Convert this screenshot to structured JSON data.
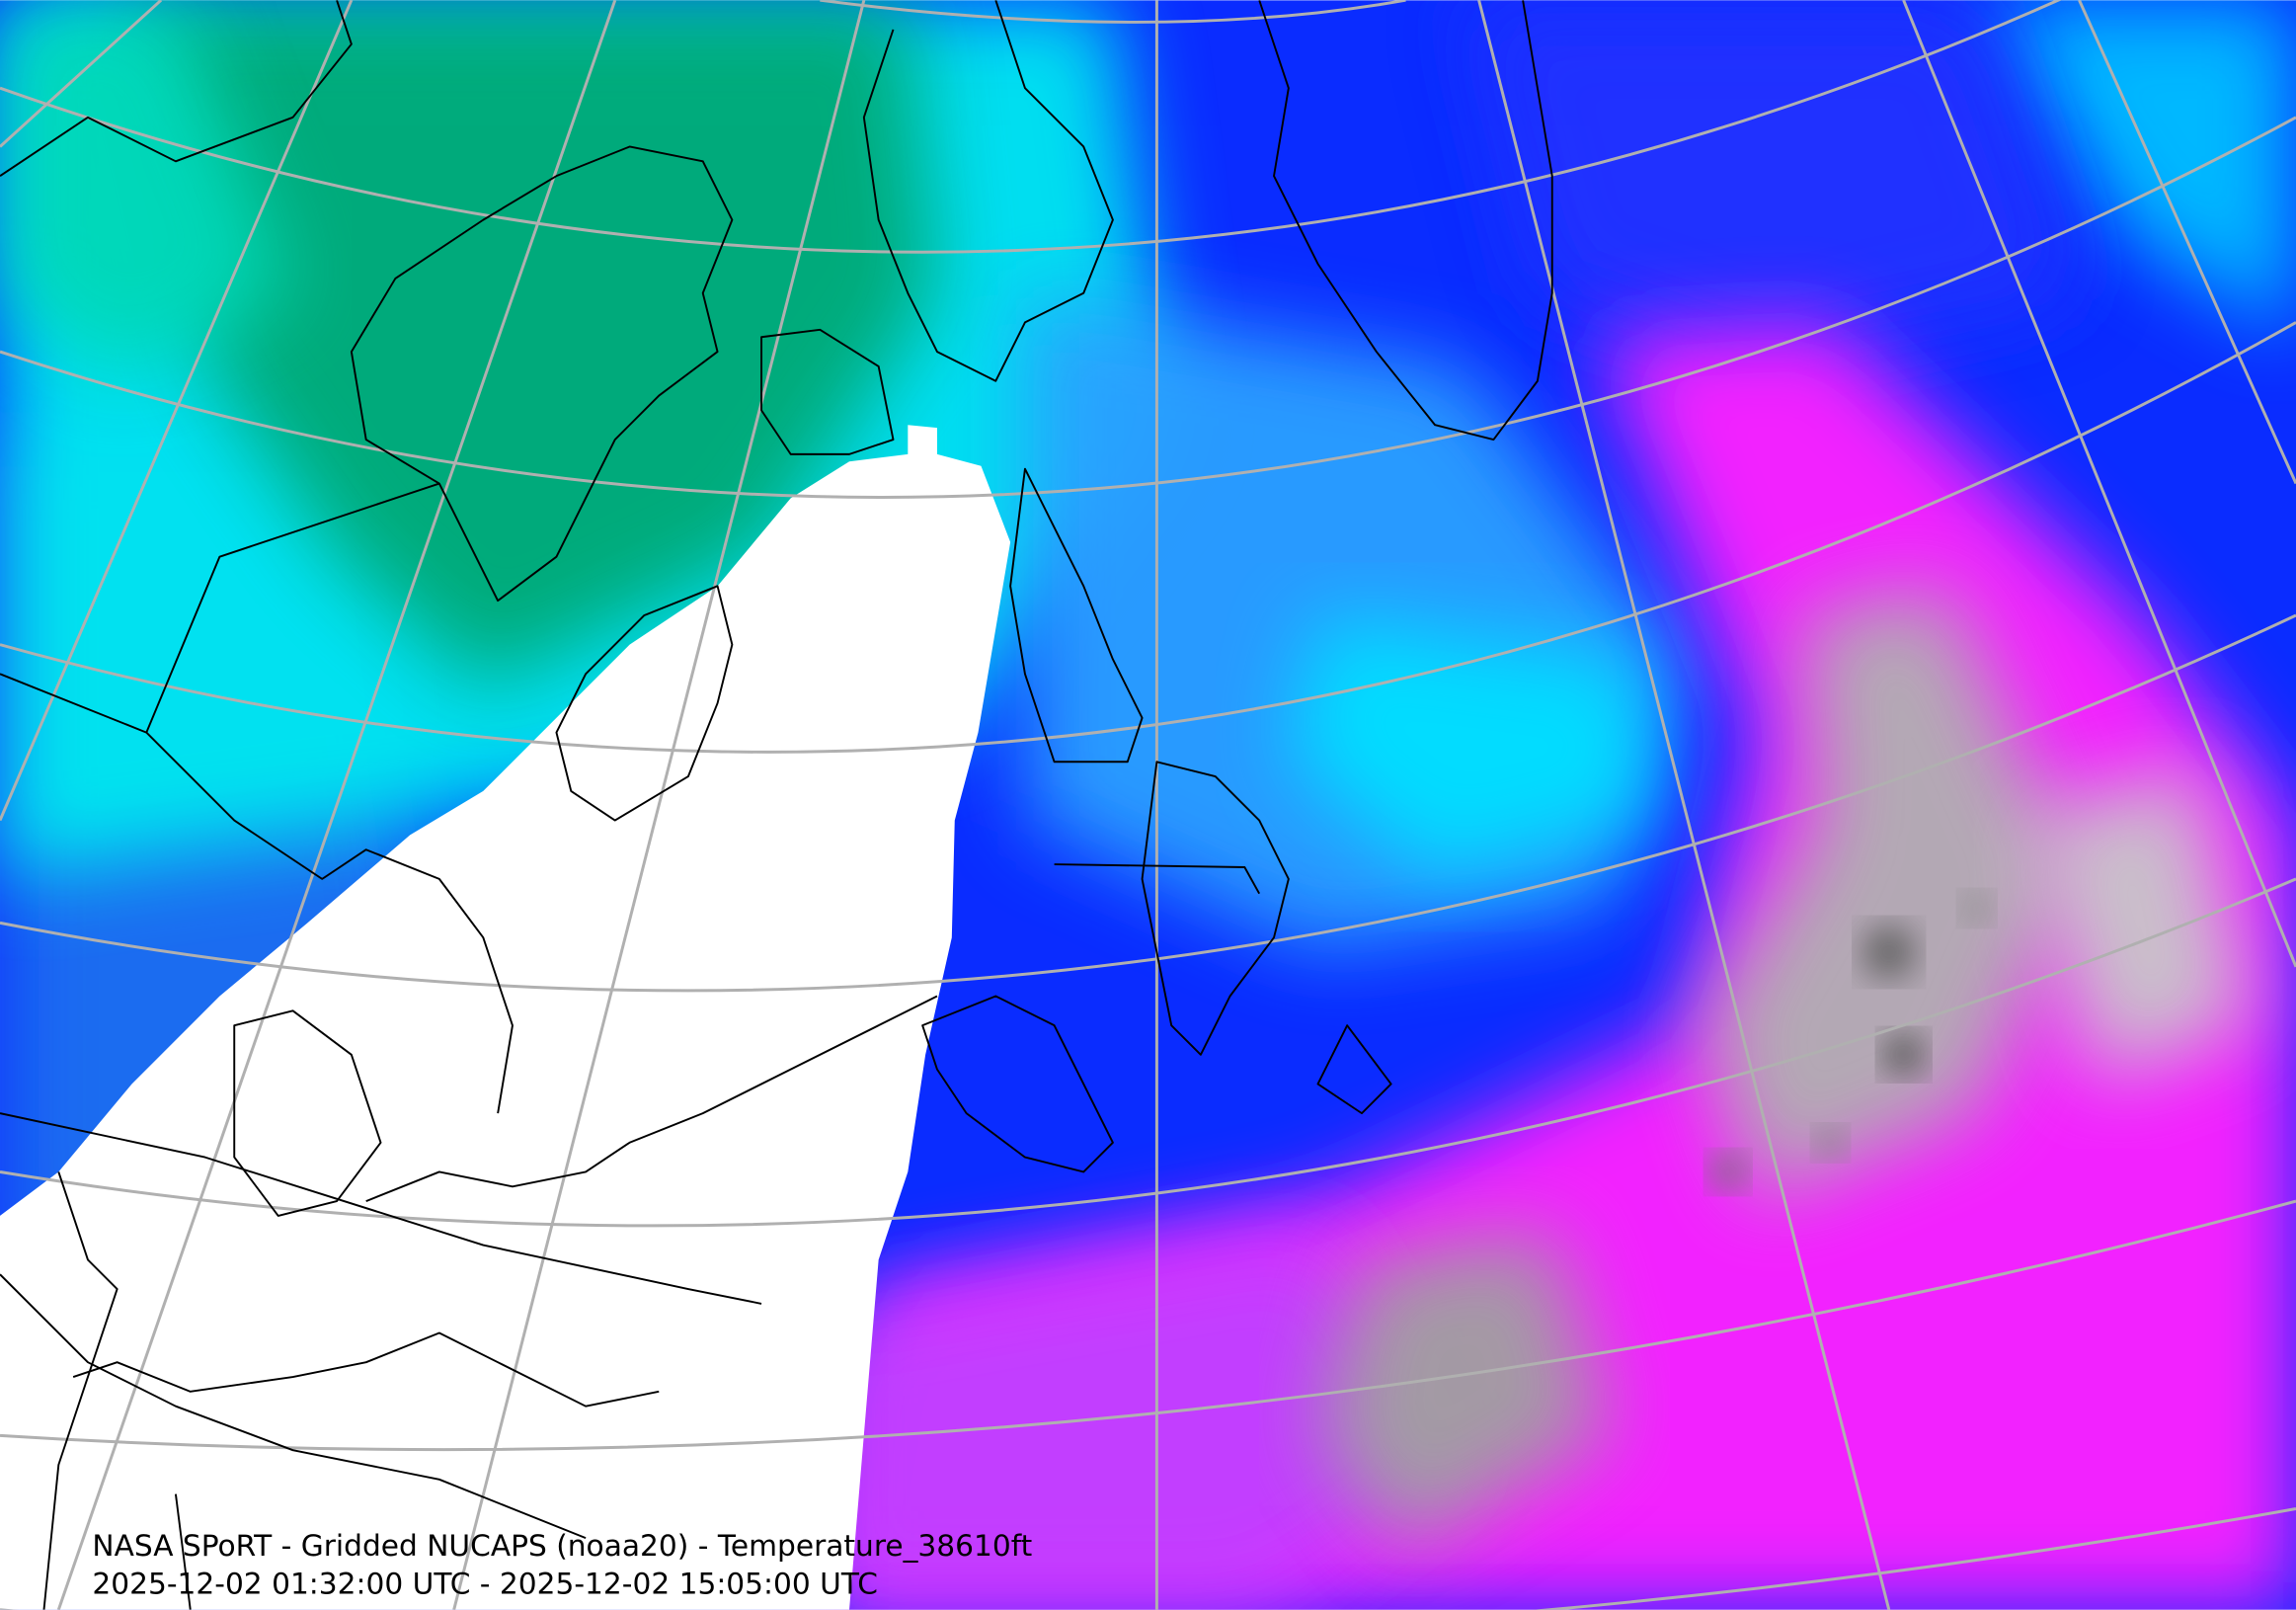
{
  "title": "NASA SPoRT - Gridded NUCAPS (noaa20) - Temperature_38610ft",
  "subtitle": "2025-12-02 01:32:00 UTC - 2025-12-02 15:05:00 UTC"
}
